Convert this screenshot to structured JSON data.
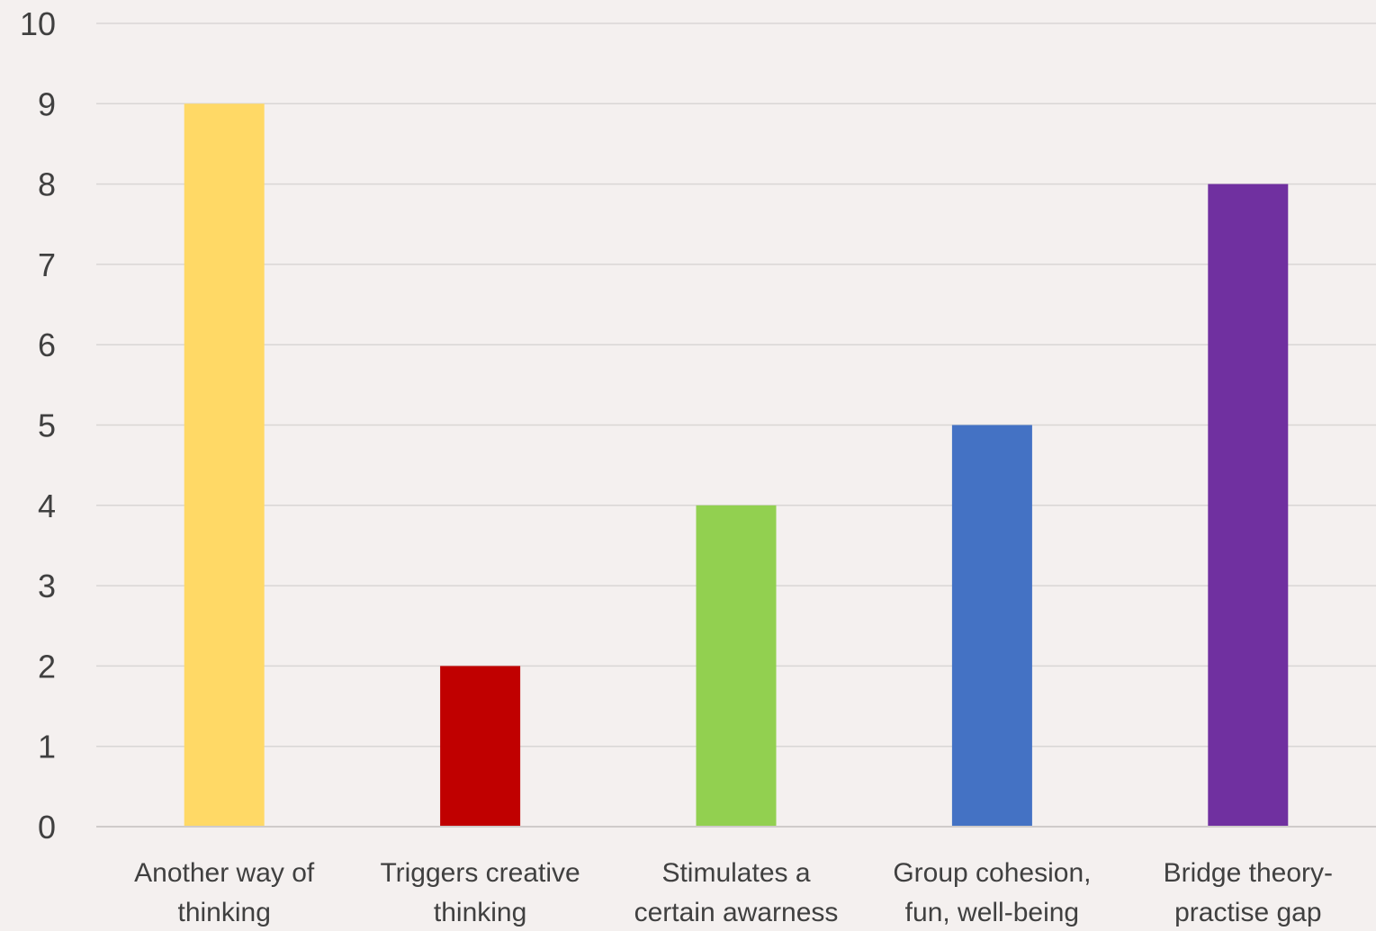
{
  "chart_data": {
    "type": "bar",
    "title": "",
    "xlabel": "",
    "ylabel": "",
    "ylim": [
      0,
      10
    ],
    "yticks": [
      "0",
      "1",
      "2",
      "3",
      "4",
      "5",
      "6",
      "7",
      "8",
      "9",
      "10"
    ],
    "grid": true,
    "legend": "none",
    "categories": [
      [
        "Another way of",
        "thinking"
      ],
      [
        "Triggers creative",
        "thinking"
      ],
      [
        "Stimulates a",
        "certain awarness"
      ],
      [
        "Group cohesion,",
        "fun, well-being"
      ],
      [
        "Bridge theory-",
        "practise gap"
      ]
    ],
    "values": [
      9,
      2,
      4,
      5,
      8
    ],
    "colors": [
      "#ffd966",
      "#c00000",
      "#92d050",
      "#4472c4",
      "#7030a0"
    ]
  }
}
